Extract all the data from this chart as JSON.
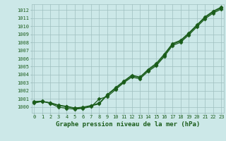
{
  "title": "Graphe pression niveau de la mer (hPa)",
  "xlabel_ticks": [
    0,
    1,
    2,
    3,
    4,
    5,
    6,
    7,
    8,
    9,
    10,
    11,
    12,
    13,
    14,
    15,
    16,
    17,
    18,
    19,
    20,
    21,
    22,
    23
  ],
  "ylim": [
    999.3,
    1012.7
  ],
  "xlim": [
    -0.3,
    23.3
  ],
  "yticks": [
    1000,
    1001,
    1002,
    1003,
    1004,
    1005,
    1006,
    1007,
    1008,
    1009,
    1010,
    1011,
    1012
  ],
  "bg_color": "#cce8e8",
  "grid_color": "#9fbfbf",
  "line_color": "#1a5c1a",
  "line1": [
    1000.5,
    1000.7,
    1000.5,
    1000.2,
    1000.05,
    999.85,
    999.9,
    1000.15,
    1000.4,
    1001.5,
    1002.3,
    1003.1,
    1003.85,
    1003.65,
    1004.55,
    1005.25,
    1006.4,
    1007.75,
    1008.15,
    1009.05,
    1010.05,
    1011.05,
    1011.75,
    1012.25
  ],
  "line2": [
    1000.6,
    1000.7,
    1000.55,
    1000.25,
    1000.1,
    999.9,
    1000.0,
    1000.2,
    1000.5,
    1001.55,
    1002.4,
    1003.2,
    1003.95,
    1003.7,
    1004.65,
    1005.4,
    1006.55,
    1007.85,
    1008.25,
    1009.15,
    1010.15,
    1011.15,
    1011.85,
    1012.35
  ],
  "line3": [
    1000.7,
    1000.75,
    1000.45,
    1000.0,
    999.85,
    999.75,
    999.85,
    1000.05,
    1001.0,
    1001.3,
    1002.15,
    1003.0,
    1003.7,
    1003.5,
    1004.4,
    1005.1,
    1006.25,
    1007.6,
    1008.0,
    1008.9,
    1009.9,
    1010.9,
    1011.6,
    1012.1
  ],
  "marker": "D",
  "markersize": 2.5,
  "linewidth": 0.9,
  "title_fontsize": 6.5,
  "tick_fontsize": 5.0,
  "fig_width": 3.2,
  "fig_height": 2.0,
  "dpi": 100
}
